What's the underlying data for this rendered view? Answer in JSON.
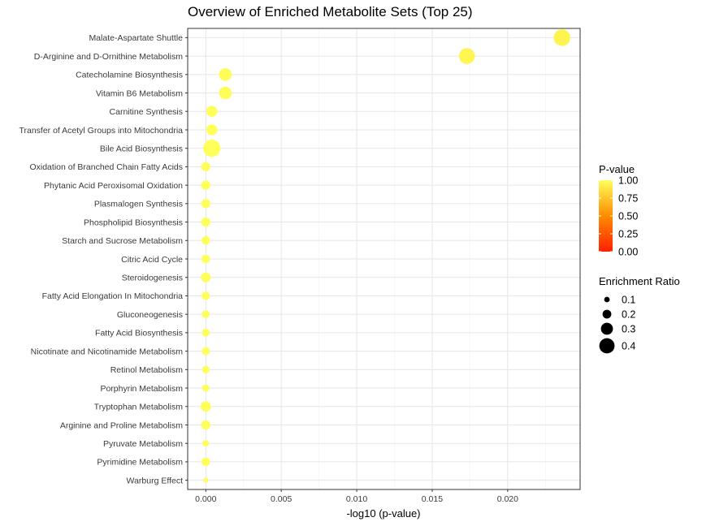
{
  "chart_data": {
    "type": "scatter",
    "title": "Overview of Enriched Metabolite Sets (Top 25)",
    "xlabel": "-log10 (p-value)",
    "ylabel": "",
    "xlim": [
      -0.0012,
      0.0248
    ],
    "xticks": [
      "0.000",
      "0.005",
      "0.010",
      "0.015",
      "0.020"
    ],
    "xtick_values": [
      0,
      0.005,
      0.01,
      0.015,
      0.02
    ],
    "grid": true,
    "legend_position": "right",
    "color_legend": {
      "title": "P-value",
      "labels": [
        "1.00",
        "0.75",
        "0.50",
        "0.25",
        "0.00"
      ],
      "values": [
        1.0,
        0.75,
        0.5,
        0.25,
        0.0
      ],
      "low_color": "#ff2000",
      "high_color": "#ffff5a"
    },
    "size_legend": {
      "title": "Enrichment Ratio",
      "labels": [
        "0.1",
        "0.2",
        "0.3",
        "0.4"
      ],
      "values": [
        0.1,
        0.2,
        0.3,
        0.4
      ]
    },
    "points": [
      {
        "name": "Malate-Aspartate Shuttle",
        "x": 0.0236,
        "ratio": 0.44,
        "p": 0.947
      },
      {
        "name": "D-Arginine and D-Ornithine Metabolism",
        "x": 0.0173,
        "ratio": 0.42,
        "p": 0.961
      },
      {
        "name": "Catecholamine Biosynthesis",
        "x": 0.0013,
        "ratio": 0.32,
        "p": 0.997
      },
      {
        "name": "Vitamin B6 Metabolism",
        "x": 0.0013,
        "ratio": 0.32,
        "p": 0.997
      },
      {
        "name": "Carnitine Synthesis",
        "x": 0.0004,
        "ratio": 0.27,
        "p": 0.999
      },
      {
        "name": "Transfer of Acetyl Groups into Mitochondria",
        "x": 0.0004,
        "ratio": 0.27,
        "p": 0.999
      },
      {
        "name": "Bile Acid Biosynthesis",
        "x": 0.0004,
        "ratio": 0.46,
        "p": 0.999
      },
      {
        "name": "Oxidation of Branched Chain Fatty Acids",
        "x": 0.0,
        "ratio": 0.21,
        "p": 1.0
      },
      {
        "name": "Phytanic Acid Peroxisomal Oxidation",
        "x": 0.0,
        "ratio": 0.21,
        "p": 1.0
      },
      {
        "name": "Plasmalogen Synthesis",
        "x": 0.0,
        "ratio": 0.21,
        "p": 1.0
      },
      {
        "name": "Phospholipid Biosynthesis",
        "x": 0.0,
        "ratio": 0.21,
        "p": 1.0
      },
      {
        "name": "Starch and Sucrose Metabolism",
        "x": 0.0,
        "ratio": 0.19,
        "p": 1.0
      },
      {
        "name": "Citric Acid Cycle",
        "x": 0.0,
        "ratio": 0.19,
        "p": 1.0
      },
      {
        "name": "Steroidogenesis",
        "x": 0.0,
        "ratio": 0.23,
        "p": 1.0
      },
      {
        "name": "Fatty Acid Elongation In Mitochondria",
        "x": 0.0,
        "ratio": 0.18,
        "p": 1.0
      },
      {
        "name": "Gluconeogenesis",
        "x": 0.0,
        "ratio": 0.17,
        "p": 1.0
      },
      {
        "name": "Fatty Acid Biosynthesis",
        "x": 0.0,
        "ratio": 0.17,
        "p": 1.0
      },
      {
        "name": "Nicotinate and Nicotinamide Metabolism",
        "x": 0.0,
        "ratio": 0.17,
        "p": 1.0
      },
      {
        "name": "Retinol Metabolism",
        "x": 0.0,
        "ratio": 0.16,
        "p": 1.0
      },
      {
        "name": "Porphyrin Metabolism",
        "x": 0.0,
        "ratio": 0.15,
        "p": 1.0
      },
      {
        "name": "Tryptophan Metabolism",
        "x": 0.0,
        "ratio": 0.25,
        "p": 1.0
      },
      {
        "name": "Arginine and Proline Metabolism",
        "x": 0.0,
        "ratio": 0.21,
        "p": 1.0
      },
      {
        "name": "Pyruvate Metabolism",
        "x": 0.0,
        "ratio": 0.13,
        "p": 1.0
      },
      {
        "name": "Pyrimidine Metabolism",
        "x": 0.0,
        "ratio": 0.19,
        "p": 1.0
      },
      {
        "name": "Warburg Effect",
        "x": 0.0,
        "ratio": 0.08,
        "p": 1.0
      }
    ]
  }
}
